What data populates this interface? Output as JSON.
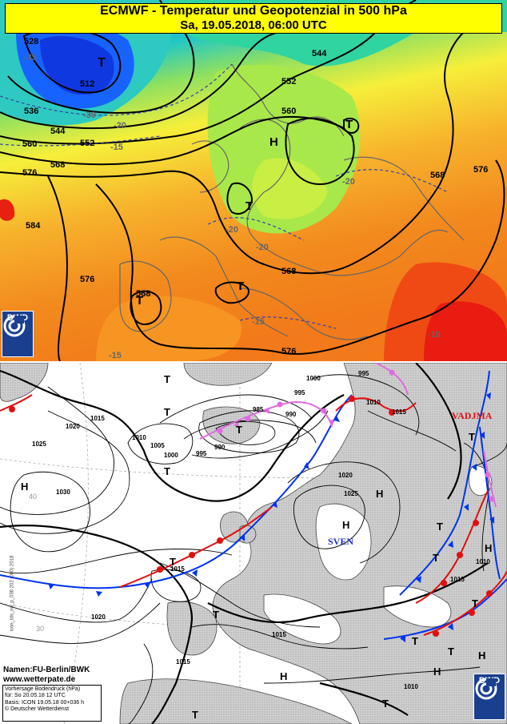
{
  "top_map": {
    "title_line1": "ECMWF - Temperatur und Geopotenzial in 500 hPa",
    "title_line2": "Sa, 19.05.2018, 06:00 UTC",
    "logo_text": "DWD",
    "geopotential_labels": [
      "528",
      "512",
      "536",
      "544",
      "552",
      "560",
      "568",
      "576",
      "584",
      "576",
      "568",
      "560",
      "552",
      "544",
      "568",
      "576",
      "568",
      "576"
    ],
    "temperature_labels": [
      "-35",
      "-30",
      "-20",
      "-15",
      "-20",
      "-20",
      "-20",
      "-15",
      "-15",
      "-10"
    ],
    "pressure_centers": [
      "T",
      "H",
      "T",
      "T",
      "T",
      "T"
    ]
  },
  "bottom_map": {
    "logo_text": "DWD",
    "credit_line1": "Namen:FU-Berlin/BWK",
    "credit_line2": "www.wetterpate.de",
    "forecast_box": {
      "line1": "Vorhersage Bodendruck (hPa)",
      "line2": "für:  So 20.05.18 12 UTC",
      "line3": "Basis: ICON  19.05.18 00+036 h",
      "line4": "© Deutscher Wetterdienst"
    },
    "side_text": "icon_tds_na_p_036 202 (000) 2018",
    "front_names": [
      "VADJMA",
      "SVEN"
    ],
    "isobar_labels": [
      "1015",
      "1020",
      "1025",
      "1030",
      "1010",
      "1005",
      "1000",
      "995",
      "990",
      "985",
      "990",
      "995",
      "1000",
      "995",
      "1010",
      "1015",
      "1020",
      "1025",
      "1015",
      "1020",
      "1015",
      "1010",
      "1015",
      "1015",
      "1010"
    ],
    "grid_labels": [
      "40",
      "30"
    ],
    "pressure_centers": [
      "T",
      "T",
      "T",
      "T",
      "H",
      "T",
      "T",
      "H",
      "T",
      "T",
      "H",
      "T",
      "T",
      "T",
      "H",
      "T",
      "H",
      "T",
      "T",
      "H",
      "H"
    ]
  }
}
